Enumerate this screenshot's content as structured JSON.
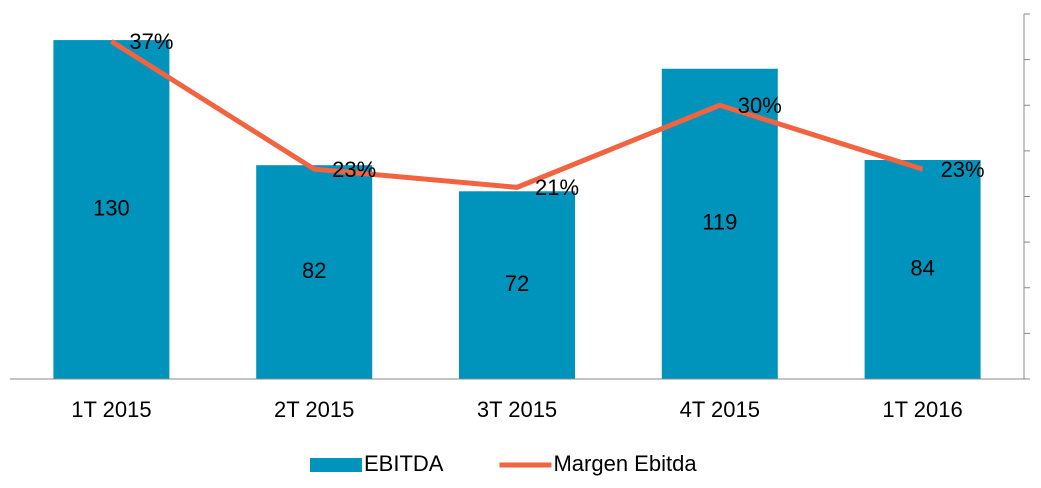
{
  "chart_data": {
    "type": "bar",
    "categories": [
      "1T 2015",
      "2T 2015",
      "3T 2015",
      "4T 2015",
      "1T 2016"
    ],
    "series": [
      {
        "name": "EBITDA",
        "type": "bar",
        "color": "#0094bd",
        "values": [
          130,
          82,
          72,
          119,
          84
        ]
      },
      {
        "name": "Margen Ebitda",
        "type": "line",
        "axis": "y2",
        "color": "#f26340",
        "values": [
          37,
          23,
          21,
          30,
          23
        ],
        "value_labels": [
          "37%",
          "23%",
          "21%",
          "30%",
          "23%"
        ]
      }
    ],
    "ylim": [
      0,
      140
    ],
    "y2lim": [
      0,
      40
    ],
    "y2ticks": [
      0,
      5,
      10,
      15,
      20,
      25,
      30,
      35,
      40
    ],
    "legend": "bottom"
  }
}
